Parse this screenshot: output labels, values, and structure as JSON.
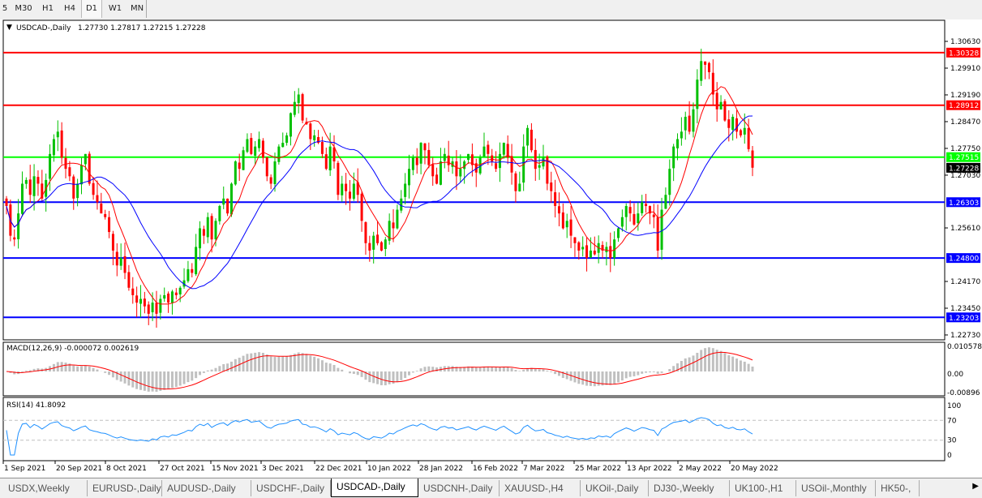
{
  "timeframes": [
    {
      "label": "5"
    },
    {
      "label": "M30"
    },
    {
      "label": "H1"
    },
    {
      "label": "H4"
    },
    {
      "label": "D1",
      "active": true
    },
    {
      "label": "W1"
    },
    {
      "label": "MN"
    }
  ],
  "chart": {
    "symbol_label": "USDCAD-,Daily",
    "ohlc": "1.27730 1.27817 1.27215 1.27228",
    "current_price": "1.27228"
  },
  "chart_data": {
    "type": "candlestick",
    "closes": [
      1.262,
      1.254,
      1.253,
      1.26,
      1.268,
      1.269,
      1.265,
      1.27,
      1.268,
      1.264,
      1.269,
      1.276,
      1.28,
      1.282,
      1.275,
      1.272,
      1.27,
      1.264,
      1.268,
      1.273,
      1.276,
      1.268,
      1.265,
      1.263,
      1.26,
      1.259,
      1.255,
      1.25,
      1.246,
      1.248,
      1.244,
      1.24,
      1.238,
      1.236,
      1.237,
      1.235,
      1.233,
      1.236,
      1.233,
      1.237,
      1.238,
      1.236,
      1.239,
      1.238,
      1.24,
      1.242,
      1.245,
      1.244,
      1.251,
      1.256,
      1.254,
      1.259,
      1.253,
      1.258,
      1.262,
      1.264,
      1.26,
      1.268,
      1.274,
      1.272,
      1.277,
      1.28,
      1.276,
      1.278,
      1.28,
      1.275,
      1.27,
      1.268,
      1.274,
      1.278,
      1.279,
      1.281,
      1.287,
      1.29,
      1.292,
      1.285,
      1.284,
      1.28,
      1.281,
      1.279,
      1.276,
      1.272,
      1.278,
      1.274,
      1.265,
      1.268,
      1.266,
      1.264,
      1.268,
      1.265,
      1.258,
      1.252,
      1.25,
      1.254,
      1.252,
      1.25,
      1.253,
      1.258,
      1.256,
      1.261,
      1.264,
      1.268,
      1.272,
      1.275,
      1.273,
      1.279,
      1.277,
      1.273,
      1.27,
      1.268,
      1.274,
      1.276,
      1.273,
      1.274,
      1.27,
      1.272,
      1.274,
      1.276,
      1.273,
      1.271,
      1.275,
      1.278,
      1.276,
      1.274,
      1.272,
      1.276,
      1.279,
      1.275,
      1.271,
      1.266,
      1.268,
      1.278,
      1.283,
      1.277,
      1.272,
      1.273,
      1.275,
      1.268,
      1.266,
      1.262,
      1.26,
      1.256,
      1.258,
      1.254,
      1.252,
      1.25,
      1.251,
      1.248,
      1.25,
      1.249,
      1.252,
      1.25,
      1.251,
      1.248,
      1.253,
      1.256,
      1.259,
      1.262,
      1.26,
      1.257,
      1.26,
      1.263,
      1.262,
      1.26,
      1.259,
      1.25,
      1.261,
      1.265,
      1.272,
      1.278,
      1.28,
      1.282,
      1.286,
      1.282,
      1.288,
      1.296,
      1.301,
      1.3,
      1.298,
      1.292,
      1.288,
      1.29,
      1.285,
      1.283,
      1.286,
      1.282,
      1.281,
      1.283,
      1.2773,
      1.2723
    ],
    "ylim": [
      1.2273,
      1.3063
    ],
    "price_ticks": [
      "1.30630",
      "1.29910",
      "1.29190",
      "1.28470",
      "1.27750",
      "1.27030",
      "1.25610",
      "1.24170",
      "1.23450",
      "1.22730"
    ],
    "hlines": [
      {
        "price": "1.30328",
        "color": "#ff0000"
      },
      {
        "price": "1.28912",
        "color": "#ff0000"
      },
      {
        "price": "1.27515",
        "color": "#00ff00"
      },
      {
        "price": "1.26303",
        "color": "#0000ff"
      },
      {
        "price": "1.24800",
        "color": "#0000ff"
      },
      {
        "price": "1.23203",
        "color": "#0000ff"
      }
    ],
    "date_labels": [
      "1 Sep 2021",
      "20 Sep 2021",
      "8 Oct 2021",
      "27 Oct 2021",
      "15 Nov 2021",
      "3 Dec 2021",
      "22 Dec 2021",
      "10 Jan 2022",
      "28 Jan 2022",
      "16 Feb 2022",
      "7 Mar 2022",
      "25 Mar 2022",
      "13 Apr 2022",
      "2 May 2022",
      "20 May 2022"
    ],
    "colors": {
      "bull": "#00c000",
      "bear": "#ff0000",
      "ma_fast": "#ff0000",
      "ma_slow": "#0000ff",
      "macd_hist": "#c0c0c0",
      "macd_signal": "#ff0000",
      "rsi": "#1e90ff"
    }
  },
  "macd": {
    "label": "MACD(12,26,9) -0.000072 0.002619",
    "ticks": [
      "0.010578",
      "0.00",
      "-0.00896"
    ]
  },
  "rsi": {
    "label": "RSI(14) 41.8092",
    "ticks": [
      "100",
      "70",
      "30",
      "0"
    ]
  },
  "tabs": [
    {
      "label": "USDX,Weekly"
    },
    {
      "label": "EURUSD-,Daily"
    },
    {
      "label": "AUDUSD-,Daily"
    },
    {
      "label": "USDCHF-,Daily"
    },
    {
      "label": "USDCAD-,Daily",
      "active": true
    },
    {
      "label": "USDCNH-,Daily"
    },
    {
      "label": "XAUUSD-,H4"
    },
    {
      "label": "UKOil-,Daily"
    },
    {
      "label": "DJ30-,Weekly"
    },
    {
      "label": "UK100-,H1"
    },
    {
      "label": "USOil-,Monthly"
    },
    {
      "label": "HK50-,"
    }
  ]
}
